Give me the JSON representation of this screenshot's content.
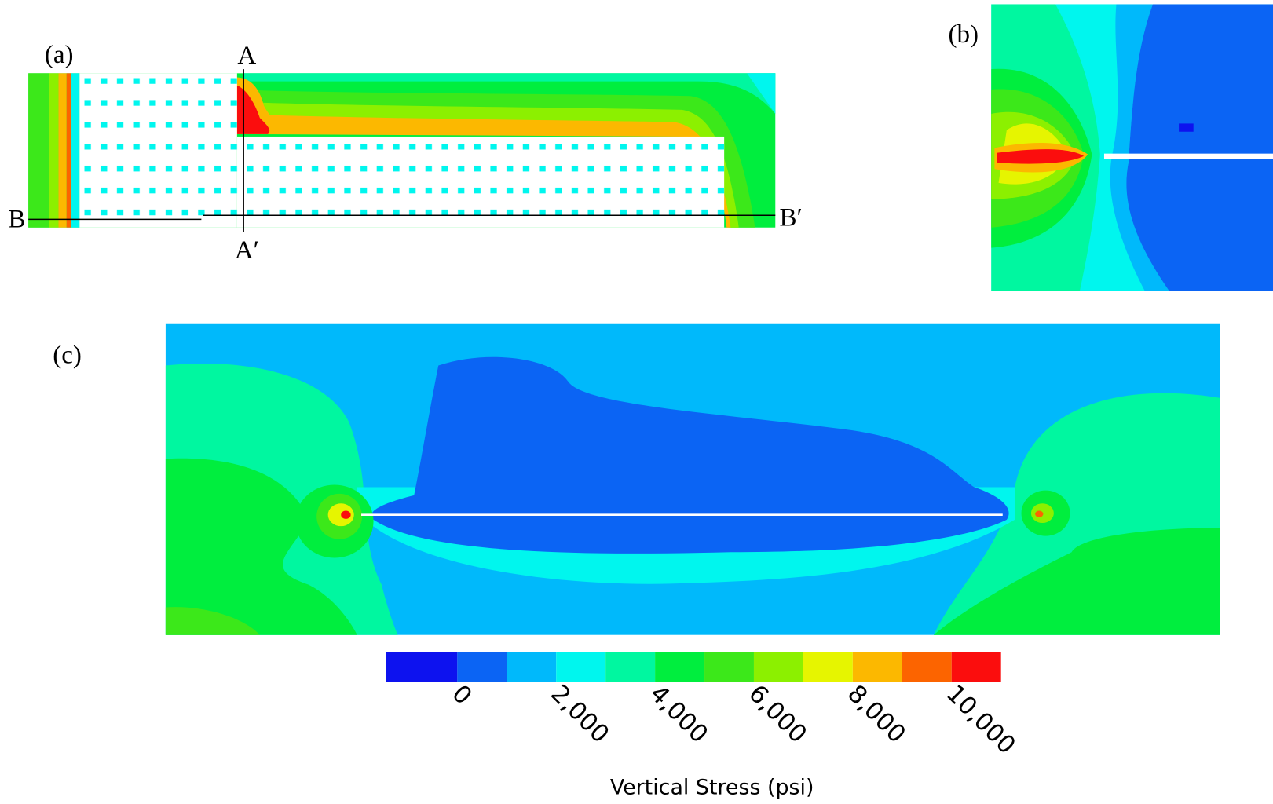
{
  "panels": {
    "a": "(a)",
    "b": "(b)",
    "c": "(c)"
  },
  "sections": {
    "a_top": "A",
    "a_bottom": "A′",
    "b_left": "B",
    "b_right": "B′"
  },
  "colorbar": {
    "title": "Vertical Stress (psi)",
    "lim": [
      -1450,
      11000
    ],
    "levels": [
      -1450,
      0,
      1000,
      2000,
      3000,
      4000,
      5000,
      6000,
      7000,
      8000,
      9000,
      10000,
      11000
    ],
    "colors": [
      "#0d12ef",
      "#0b64f4",
      "#00b9fb",
      "#00f6ee",
      "#00f7a0",
      "#00ee3e",
      "#3ce81a",
      "#8cf000",
      "#e6f500",
      "#fcb800",
      "#fc6400",
      "#fb0d0d"
    ],
    "ticks": [
      0,
      {
        "value": 2000,
        "label": "2,000"
      },
      {
        "value": 4000,
        "label": "4,000"
      },
      {
        "value": 6000,
        "label": "6,000"
      },
      {
        "value": 8000,
        "label": "8,000"
      },
      {
        "value": 10000,
        "label": "10,000"
      }
    ]
  }
}
